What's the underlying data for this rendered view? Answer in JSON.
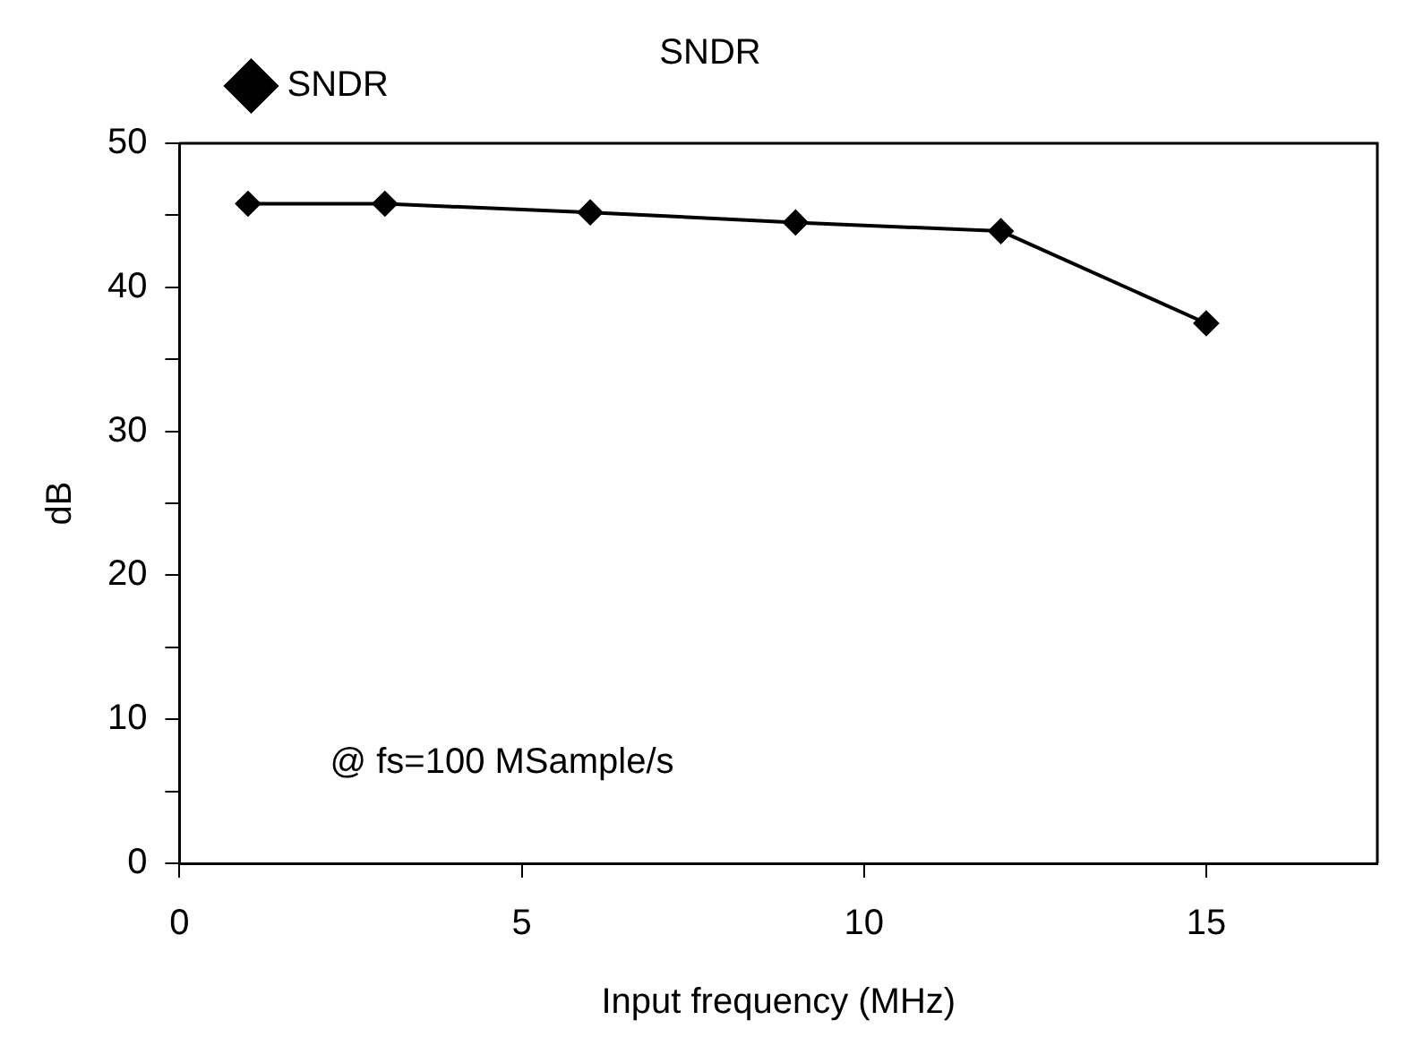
{
  "chart_data": {
    "type": "line",
    "title": "SNDR",
    "xlabel": "Input frequency (MHz)",
    "ylabel": "dB",
    "x": [
      1,
      3,
      6,
      9,
      12,
      15
    ],
    "series": [
      {
        "name": "SNDR",
        "color": "#000000",
        "values": [
          45.8,
          45.8,
          45.2,
          44.5,
          43.9,
          37.5
        ]
      }
    ],
    "xlim": [
      0,
      17.5
    ],
    "xticks": [
      0,
      5,
      10,
      15
    ],
    "ylim": [
      0,
      50
    ],
    "yticks": [
      0,
      {
        "value": 5,
        "label": null
      },
      10,
      {
        "value": 15,
        "label": null
      },
      20,
      {
        "value": 25,
        "label": null
      },
      30,
      {
        "value": 35,
        "label": null
      },
      40,
      {
        "value": 45,
        "label": null
      },
      50
    ],
    "annotations": [
      "@ fs=100 MSample/s"
    ],
    "legend": "top left",
    "marker": "diamond",
    "line_style": "solid",
    "grid": false
  }
}
